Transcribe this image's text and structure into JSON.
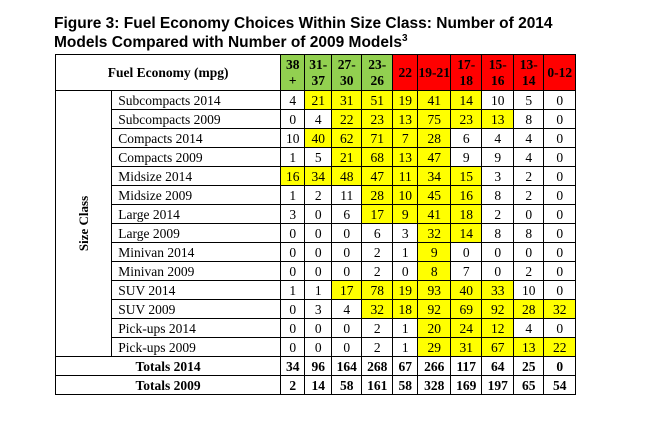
{
  "title_line1": "Figure 3: Fuel Economy Choices Within Size Class: Number of 2014",
  "title_line2": "Models Compared with Number of 2009 Models",
  "title_sup": "3",
  "header_label": "Fuel Economy (mpg)",
  "columns": [
    "38 +",
    "31-37",
    "27-30",
    "23-26",
    "22",
    "19-21",
    "17-18",
    "15-16",
    "13-14",
    "0-12"
  ],
  "column_colors": [
    "#92d050",
    "#92d050",
    "#92d050",
    "#92d050",
    "#ff0000",
    "#ff0000",
    "#ff0000",
    "#ff0000",
    "#ff0000",
    "#ff0000"
  ],
  "highlight_color": "#ffff00",
  "side_label": "Size Class",
  "rows": [
    {
      "label": "Subcompacts 2014",
      "values": [
        "4",
        "21",
        "31",
        "51",
        "19",
        "41",
        "14",
        "10",
        "5",
        "0"
      ]
    },
    {
      "label": "Subcompacts 2009",
      "values": [
        "0",
        "4",
        "22",
        "23",
        "13",
        "75",
        "23",
        "13",
        "8",
        "0"
      ]
    },
    {
      "label": "Compacts 2014",
      "values": [
        "10",
        "40",
        "62",
        "71",
        "7",
        "28",
        "6",
        "4",
        "4",
        "0"
      ]
    },
    {
      "label": "Compacts 2009",
      "values": [
        "1",
        "5",
        "21",
        "68",
        "13",
        "47",
        "9",
        "9",
        "4",
        "0"
      ]
    },
    {
      "label": "Midsize 2014",
      "values": [
        "16",
        "34",
        "48",
        "47",
        "11",
        "34",
        "15",
        "3",
        "2",
        "0"
      ]
    },
    {
      "label": "Midsize 2009",
      "values": [
        "1",
        "2",
        "11",
        "28",
        "10",
        "45",
        "16",
        "8",
        "2",
        "0"
      ]
    },
    {
      "label": "Large 2014",
      "values": [
        "3",
        "0",
        "6",
        "17",
        "9",
        "41",
        "18",
        "2",
        "0",
        "0"
      ]
    },
    {
      "label": "Large 2009",
      "values": [
        "0",
        "0",
        "0",
        "6",
        "3",
        "32",
        "14",
        "8",
        "8",
        "0"
      ]
    },
    {
      "label": "Minivan 2014",
      "values": [
        "0",
        "0",
        "0",
        "2",
        "1",
        "9",
        "0",
        "0",
        "0",
        "0"
      ]
    },
    {
      "label": "Minivan 2009",
      "values": [
        "0",
        "0",
        "0",
        "2",
        "0",
        "8",
        "7",
        "0",
        "2",
        "0"
      ]
    },
    {
      "label": "SUV 2014",
      "values": [
        "1",
        "1",
        "17",
        "78",
        "19",
        "93",
        "40",
        "33",
        "10",
        "0"
      ]
    },
    {
      "label": "SUV 2009",
      "values": [
        "0",
        "3",
        "4",
        "32",
        "18",
        "92",
        "69",
        "92",
        "28",
        "32"
      ]
    },
    {
      "label": "Pick-ups 2014",
      "values": [
        "0",
        "0",
        "0",
        "2",
        "1",
        "20",
        "24",
        "12",
        "4",
        "0"
      ]
    },
    {
      "label": "Pick-ups 2009",
      "values": [
        "0",
        "0",
        "0",
        "2",
        "1",
        "29",
        "31",
        "67",
        "13",
        "22"
      ]
    }
  ],
  "highlights": [
    [
      1,
      2,
      3,
      4,
      5,
      6
    ],
    [
      2,
      3,
      4,
      5,
      6,
      7
    ],
    [
      1,
      2,
      3,
      4,
      5
    ],
    [
      2,
      3,
      4,
      5
    ],
    [
      0,
      1,
      2,
      3,
      4,
      5,
      6
    ],
    [
      3,
      4,
      5,
      6
    ],
    [
      3,
      4,
      5,
      6
    ],
    [
      5,
      6
    ],
    [
      5
    ],
    [
      5
    ],
    [
      2,
      3,
      4,
      5,
      6,
      7
    ],
    [
      3,
      4,
      5,
      6,
      7,
      8,
      9
    ],
    [
      5,
      6,
      7
    ],
    [
      5,
      6,
      7,
      8,
      9
    ]
  ],
  "totals": [
    {
      "label": "Totals 2014",
      "values": [
        "34",
        "96",
        "164",
        "268",
        "67",
        "266",
        "117",
        "64",
        "25",
        "0"
      ]
    },
    {
      "label": "Totals 2009",
      "values": [
        "2",
        "14",
        "58",
        "161",
        "58",
        "328",
        "169",
        "197",
        "65",
        "54"
      ]
    }
  ]
}
